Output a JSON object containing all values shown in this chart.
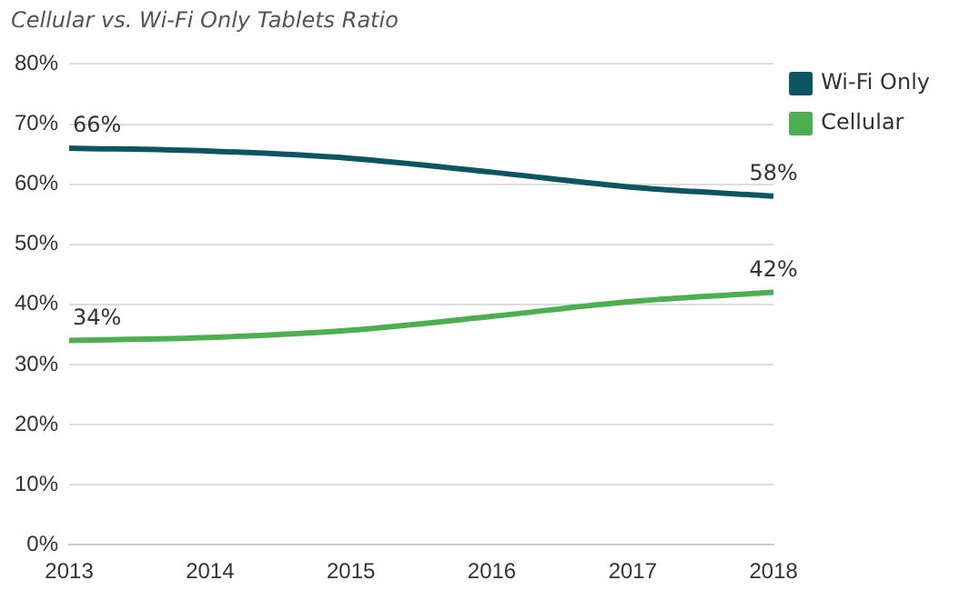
{
  "chart_data": {
    "type": "line",
    "title": "Cellular vs. Wi-Fi Only Tablets Ratio",
    "categories": [
      "2013",
      "2014",
      "2015",
      "2016",
      "2017",
      "2018"
    ],
    "series": [
      {
        "name": "Wi-Fi Only",
        "color": "#0c5563",
        "values": [
          66,
          65.5,
          64.3,
          62,
          59.5,
          58
        ],
        "value_labels": [
          "66%",
          null,
          null,
          null,
          null,
          "58%"
        ]
      },
      {
        "name": "Cellular",
        "color": "#4caf50",
        "values": [
          34,
          34.5,
          35.7,
          38,
          40.5,
          42
        ],
        "value_labels": [
          "34%",
          null,
          null,
          null,
          null,
          "42%"
        ]
      }
    ],
    "ylim": [
      0,
      80
    ],
    "yticks": [
      {
        "value": 0,
        "label": "0%"
      },
      {
        "value": 10,
        "label": "10%"
      },
      {
        "value": 20,
        "label": "20%"
      },
      {
        "value": 30,
        "label": "30%"
      },
      {
        "value": 40,
        "label": "40%"
      },
      {
        "value": 50,
        "label": "50%"
      },
      {
        "value": 60,
        "label": "60%"
      },
      {
        "value": 70,
        "label": "70%"
      },
      {
        "value": 80,
        "label": "80%"
      }
    ],
    "grid": "y",
    "legend": "top right",
    "marker": "none",
    "line_style": "solid"
  }
}
